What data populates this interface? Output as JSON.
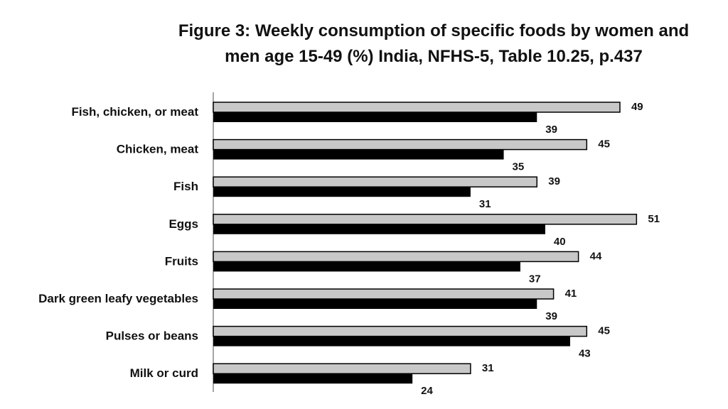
{
  "chart_data": {
    "type": "bar",
    "orientation": "horizontal",
    "title_lines": [
      "Figure 3: Weekly consumption of specific foods by women and",
      "men age 15-49 (%) India, NFHS-5, Table 10.25, p.437"
    ],
    "xlim": [
      0,
      52
    ],
    "grid": false,
    "legend": "none",
    "categories": [
      "Fish, chicken, or meat",
      "Chicken, meat",
      "Fish",
      "Eggs",
      "Fruits",
      "Dark green leafy vegetables",
      "Pulses or beans",
      "Milk or curd"
    ],
    "series": [
      {
        "values": [
          49,
          45,
          39,
          51,
          44,
          41,
          45,
          31
        ],
        "color": "#c8c8c8"
      },
      {
        "values": [
          39,
          35,
          31,
          40,
          37,
          39,
          43,
          24
        ],
        "color": "#000000"
      }
    ]
  }
}
